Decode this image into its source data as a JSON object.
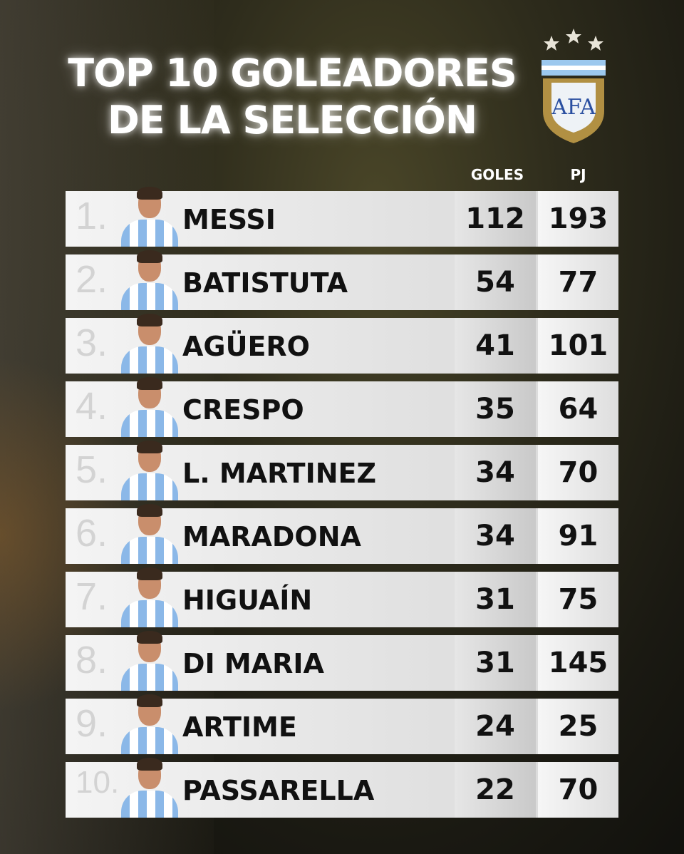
{
  "title": {
    "line1": "TOP 10 GOLEADORES",
    "line2": "DE LA SELECCIÓN"
  },
  "crest": {
    "text": "AFA",
    "colors": {
      "gold": "#c9a24a",
      "sky": "#7fb6e6",
      "blue": "#2a4fa0"
    }
  },
  "columns": {
    "goles": "GOLES",
    "pj": "PJ"
  },
  "rows": [
    {
      "rank": "1.",
      "name": "MESSI",
      "goles": "112",
      "pj": "193"
    },
    {
      "rank": "2.",
      "name": "BATISTUTA",
      "goles": "54",
      "pj": "77"
    },
    {
      "rank": "3.",
      "name": "AGÜERO",
      "goles": "41",
      "pj": "101"
    },
    {
      "rank": "4.",
      "name": "CRESPO",
      "goles": "35",
      "pj": "64"
    },
    {
      "rank": "5.",
      "name": "L. MARTINEZ",
      "goles": "34",
      "pj": "70"
    },
    {
      "rank": "6.",
      "name": "MARADONA",
      "goles": "34",
      "pj": "91"
    },
    {
      "rank": "7.",
      "name": "HIGUAÍN",
      "goles": "31",
      "pj": "75"
    },
    {
      "rank": "8.",
      "name": "DI MARIA",
      "goles": "31",
      "pj": "145"
    },
    {
      "rank": "9.",
      "name": "ARTIME",
      "goles": "24",
      "pj": "25"
    },
    {
      "rank": "10.",
      "name": "PASSARELLA",
      "goles": "22",
      "pj": "70"
    }
  ]
}
